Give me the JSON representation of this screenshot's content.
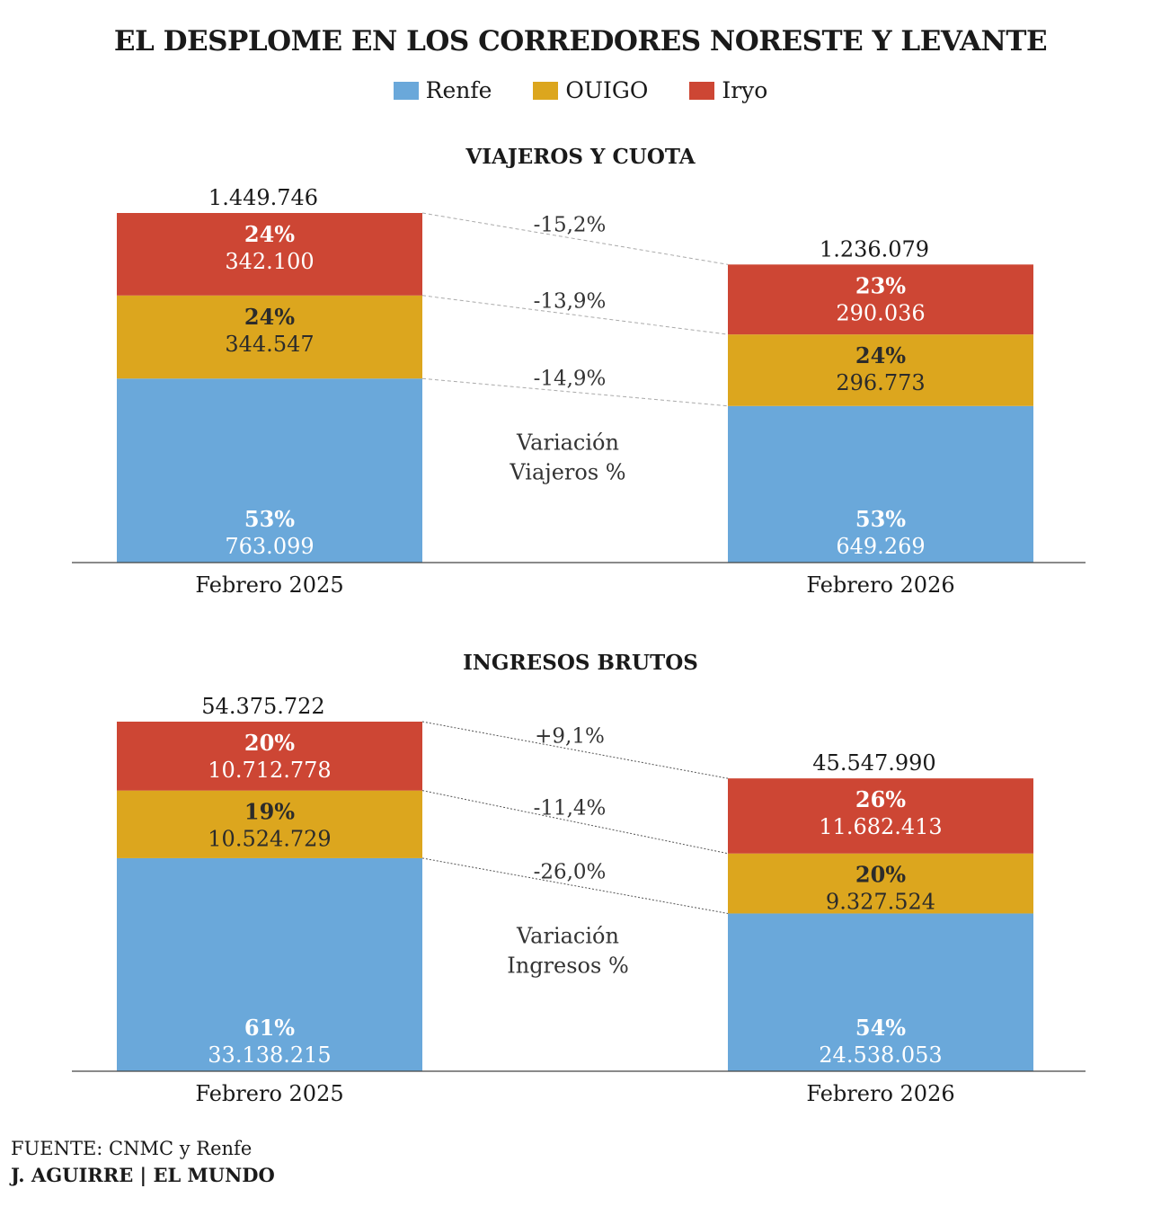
{
  "header": {
    "title": "EL DESPLOME EN LOS CORREDORES NORESTE Y LEVANTE"
  },
  "legend": [
    {
      "label": "Renfe",
      "color": "#6aa8da"
    },
    {
      "label": "OUIGO",
      "color": "#dca61e"
    },
    {
      "label": "Iryo",
      "color": "#cd4634"
    }
  ],
  "chart_data": [
    {
      "type": "bar",
      "stacked": true,
      "title": "VIAJEROS Y CUOTA",
      "categories": [
        "Febrero 2025",
        "Febrero 2026"
      ],
      "totals": [
        "1.449.746",
        "1.236.079"
      ],
      "total_values": [
        1449746,
        1236079
      ],
      "series": [
        {
          "name": "Renfe",
          "color": "#6aa8da",
          "values": [
            763099,
            649269
          ],
          "labels": [
            "763.099",
            "649.269"
          ],
          "shares": [
            "53%",
            "53%"
          ]
        },
        {
          "name": "OUIGO",
          "color": "#dca61e",
          "values": [
            344547,
            296773
          ],
          "labels": [
            "344.547",
            "296.773"
          ],
          "shares": [
            "24%",
            "24%"
          ]
        },
        {
          "name": "Iryo",
          "color": "#cd4634",
          "values": [
            342100,
            290036
          ],
          "labels": [
            "342.100",
            "290.036"
          ],
          "shares": [
            "24%",
            "23%"
          ]
        }
      ],
      "variations": [
        "-15,2%",
        "-13,9%",
        "-14,9%"
      ],
      "variation_label": [
        "Variación",
        "Viajeros %"
      ],
      "ylim": [
        0,
        1449746
      ]
    },
    {
      "type": "bar",
      "stacked": true,
      "title": "INGRESOS BRUTOS",
      "categories": [
        "Febrero 2025",
        "Febrero 2026"
      ],
      "totals": [
        "54.375.722",
        "45.547.990"
      ],
      "total_values": [
        54375722,
        45547990
      ],
      "series": [
        {
          "name": "Renfe",
          "color": "#6aa8da",
          "values": [
            33138215,
            24538053
          ],
          "labels": [
            "33.138.215",
            "24.538.053"
          ],
          "shares": [
            "61%",
            "54%"
          ]
        },
        {
          "name": "OUIGO",
          "color": "#dca61e",
          "values": [
            10524729,
            9327524
          ],
          "labels": [
            "10.524.729",
            "9.327.524"
          ],
          "shares": [
            "19%",
            "20%"
          ]
        },
        {
          "name": "Iryo",
          "color": "#cd4634",
          "values": [
            10712778,
            11682413
          ],
          "labels": [
            "10.712.778",
            "11.682.413"
          ],
          "shares": [
            "20%",
            "26%"
          ]
        }
      ],
      "variations": [
        "+9,1%",
        "-11,4%",
        "-26,0%"
      ],
      "variation_label": [
        "Variación",
        "Ingresos %"
      ],
      "ylim": [
        0,
        54375722
      ]
    }
  ],
  "footer": {
    "source": "FUENTE: CNMC y Renfe",
    "credit": "J. AGUIRRE | EL MUNDO"
  }
}
